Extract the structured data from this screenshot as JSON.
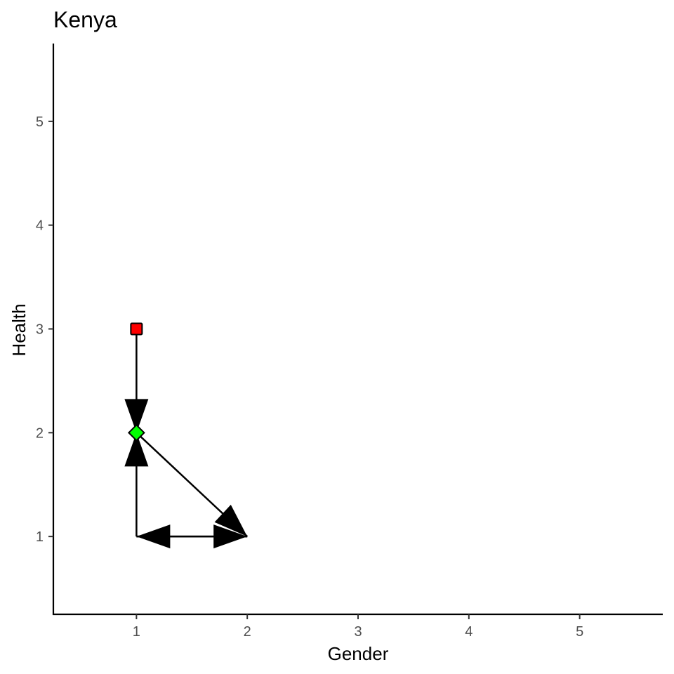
{
  "chart_data": {
    "type": "scatter",
    "title": "Kenya",
    "xlabel": "Gender",
    "ylabel": "Health",
    "xlim": [
      0.25,
      5.75
    ],
    "ylim": [
      0.25,
      5.75
    ],
    "x_ticks": [
      1,
      2,
      3,
      4,
      5
    ],
    "y_ticks": [
      1,
      2,
      3,
      4,
      5
    ],
    "grid": false,
    "points": [
      {
        "x": 1,
        "y": 3,
        "shape": "square",
        "color": "#ff0000"
      },
      {
        "x": 1,
        "y": 2,
        "shape": "diamond",
        "color": "#00ff00"
      }
    ],
    "arrows": [
      {
        "from": [
          1,
          3
        ],
        "to": [
          1,
          2
        ]
      },
      {
        "from": [
          1,
          1
        ],
        "to": [
          1,
          2
        ]
      },
      {
        "from": [
          1,
          2
        ],
        "to": [
          2,
          1
        ]
      },
      {
        "from": [
          1,
          1
        ],
        "to": [
          2,
          1
        ]
      },
      {
        "from": [
          2,
          1
        ],
        "to": [
          1,
          1
        ]
      }
    ],
    "arrow_color": "#000000",
    "axis_color": "#000000"
  }
}
